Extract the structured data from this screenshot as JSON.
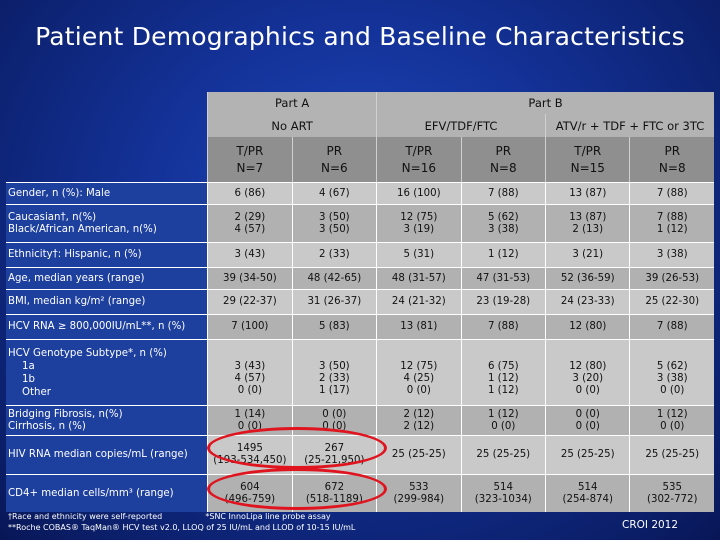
{
  "title": "Patient Demographics and Baseline Characteristics",
  "headers": {
    "part_a": "Part A",
    "part_b": "Part B",
    "no_art": "No ART",
    "efv": "EFV/TDF/FTC",
    "atv": "ATV/r + TDF + FTC or 3TC",
    "columns": [
      {
        "arm": "T/PR",
        "n": "N=7"
      },
      {
        "arm": "PR",
        "n": "N=6"
      },
      {
        "arm": "T/PR",
        "n": "N=16"
      },
      {
        "arm": "PR",
        "n": "N=8"
      },
      {
        "arm": "T/PR",
        "n": "N=15"
      },
      {
        "arm": "PR",
        "n": "N=8"
      }
    ]
  },
  "rows": [
    {
      "label": "Gender, n (%): Male",
      "values": [
        "6 (86)",
        "4 (67)",
        "16 (100)",
        "7 (88)",
        "13 (87)",
        "7 (88)"
      ]
    },
    {
      "label": "Caucasian†, n(%)",
      "label2": "Black/African American, n(%)",
      "values": [
        "2 (29)",
        "3 (50)",
        "12 (75)",
        "5 (62)",
        "13 (87)",
        "7 (88)"
      ],
      "values2": [
        "4 (57)",
        "3 (50)",
        "3 (19)",
        "3 (38)",
        "2 (13)",
        "1 (12)"
      ]
    },
    {
      "label": "Ethnicity†: Hispanic, n (%)",
      "values": [
        "3 (43)",
        "2 (33)",
        "5 (31)",
        "1 (12)",
        "3 (21)",
        "3 (38)"
      ]
    },
    {
      "label": "Age, median years (range)",
      "values": [
        "39 (34-50)",
        "48 (42-65)",
        "48 (31-57)",
        "47 (31-53)",
        "52 (36-59)",
        "39 (26-53)"
      ]
    },
    {
      "label": "BMI, median kg/m² (range)",
      "values": [
        "29 (22-37)",
        "31 (26-37)",
        "24 (21-32)",
        "23 (19-28)",
        "24 (23-33)",
        "25 (22-30)"
      ]
    },
    {
      "label": "HCV RNA ≥ 800,000IU/mL**, n (%)",
      "values": [
        "7 (100)",
        "5 (83)",
        "13 (81)",
        "7 (88)",
        "12 (80)",
        "7 (88)"
      ]
    },
    {
      "label": "HCV Genotype Subtype*, n (%)",
      "sub": [
        "1a",
        "1b",
        "Other"
      ],
      "values": [
        [
          "3 (43)",
          "4 (57)",
          "0 (0)"
        ],
        [
          "3 (50)",
          "2 (33)",
          "1 (17)"
        ],
        [
          "12 (75)",
          "4 (25)",
          "0 (0)"
        ],
        [
          "6 (75)",
          "1 (12)",
          "1 (12)"
        ],
        [
          "12 (80)",
          "3 (20)",
          "0 (0)"
        ],
        [
          "5 (62)",
          "3 (38)",
          "0 (0)"
        ]
      ]
    },
    {
      "label": "Bridging Fibrosis, n(%)",
      "label2": "Cirrhosis, n (%)",
      "values": [
        "1 (14)",
        "0 (0)",
        "2 (12)",
        "1 (12)",
        "0 (0)",
        "1 (12)"
      ],
      "values2": [
        "0 (0)",
        "0 (0)",
        "2 (12)",
        "0 (0)",
        "0 (0)",
        "0 (0)"
      ]
    },
    {
      "label": "HIV RNA median copies/mL (range)",
      "values": [
        "1495",
        "267",
        "25 (25-25)",
        "25 (25-25)",
        "25 (25-25)",
        "25 (25-25)"
      ],
      "values2": [
        "(193-534,450)",
        "(25-21,950)",
        "",
        "",
        "",
        ""
      ]
    },
    {
      "label": "CD4+ median cells/mm³ (range)",
      "values": [
        "604",
        "672",
        "533",
        "514",
        "514",
        "535"
      ],
      "values2": [
        "(496-759)",
        "(518-1189)",
        "(299-984)",
        "(323-1034)",
        "(254-874)",
        "(302-772)"
      ]
    }
  ],
  "footnotes": {
    "line1a": "†Race and ethnicity were self-reported",
    "line1b": "*SNC InnoLipa line probe assay",
    "line2": "**Roche COBAS® TaqMan® HCV test v2.0, LLOQ of 25 IU/mL and LLOD of 10-15 IU/mL"
  },
  "conference": "CROI 2012",
  "colors": {
    "highlight_oval": "#e0141e",
    "label_bg": "#1d3f9e",
    "cell_bg": "#c9c9c9"
  }
}
